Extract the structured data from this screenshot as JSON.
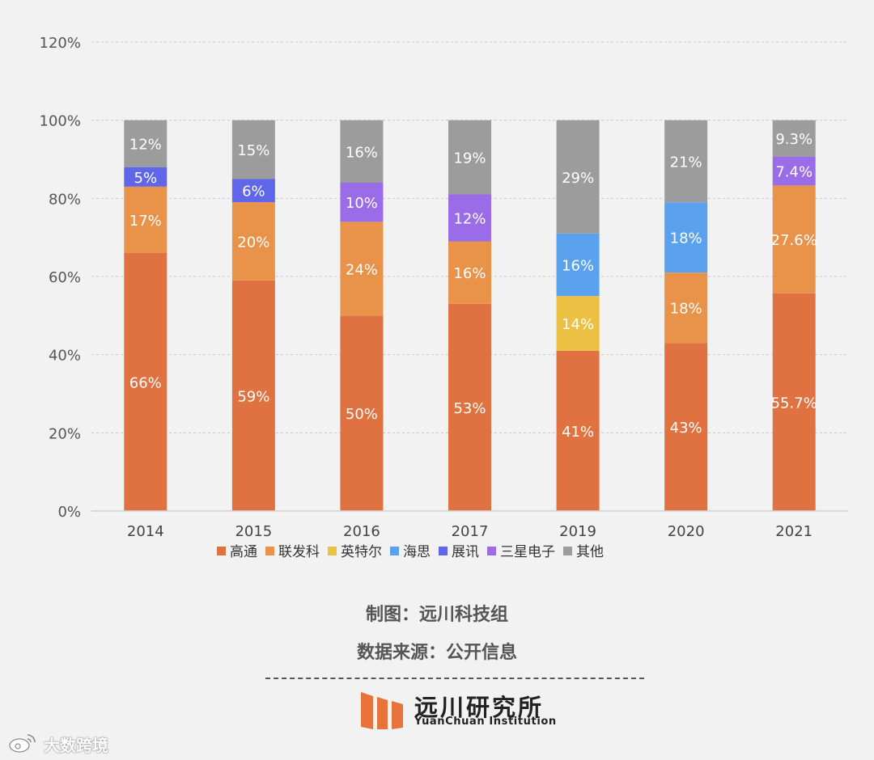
{
  "chart_data": {
    "type": "bar",
    "stacked": true,
    "categories": [
      "2014",
      "2015",
      "2016",
      "2017",
      "2019",
      "2020",
      "2021"
    ],
    "series": [
      {
        "name": "高通",
        "color": "#e07241",
        "values": [
          66,
          59,
          50,
          53,
          41,
          43,
          55.7
        ],
        "labels": [
          "66%",
          "59%",
          "50%",
          "53%",
          "41%",
          "43%",
          "55.7%"
        ]
      },
      {
        "name": "联发科",
        "color": "#e8924a",
        "values": [
          17,
          20,
          24,
          16,
          0,
          18,
          27.6
        ],
        "labels": [
          "17%",
          "20%",
          "24%",
          "16%",
          "",
          "18%",
          "27.6%"
        ]
      },
      {
        "name": "英特尔",
        "color": "#ecc043",
        "values": [
          0,
          0,
          0,
          0,
          14,
          0,
          0
        ],
        "labels": [
          "",
          "",
          "",
          "",
          "14%",
          "",
          ""
        ]
      },
      {
        "name": "海思",
        "color": "#5aa2ee",
        "values": [
          0,
          0,
          0,
          0,
          16,
          18,
          0
        ],
        "labels": [
          "",
          "",
          "",
          "",
          "16%",
          "18%",
          ""
        ]
      },
      {
        "name": "展讯",
        "color": "#5f66e8",
        "values": [
          5,
          6,
          0,
          0,
          0,
          0,
          0
        ],
        "labels": [
          "5%",
          "6%",
          "",
          "",
          "",
          "",
          ""
        ]
      },
      {
        "name": "三星电子",
        "color": "#9a6ce8",
        "values": [
          0,
          0,
          10,
          12,
          0,
          0,
          7.4
        ],
        "labels": [
          "",
          "",
          "10%",
          "12%",
          "",
          "",
          "7.4%"
        ]
      },
      {
        "name": "其他",
        "color": "#9c9c9c",
        "values": [
          12,
          15,
          16,
          19,
          29,
          21,
          9.3
        ],
        "labels": [
          "12%",
          "15%",
          "16%",
          "19%",
          "29%",
          "21%",
          "9.3%"
        ]
      }
    ],
    "ylim": [
      0,
      120
    ],
    "yticks": [
      "0%",
      "20%",
      "40%",
      "60%",
      "80%",
      "100%",
      "120%"
    ],
    "ytick_values": [
      0,
      20,
      40,
      60,
      80,
      100,
      120
    ],
    "grid": true,
    "legend": "bottom"
  },
  "credits": {
    "chart_by": "制图：远川科技组",
    "source": "数据来源：公开信息"
  },
  "logo": {
    "name": "远川研究所",
    "sub": "YuanChuan Institution",
    "color": "#e8733a"
  },
  "watermark": {
    "text": "大数跨境"
  }
}
